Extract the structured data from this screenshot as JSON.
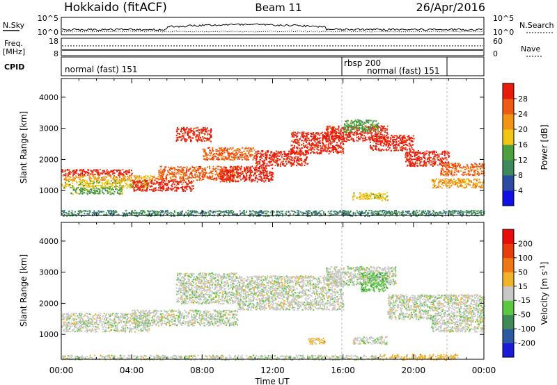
{
  "header": {
    "station": "Hokkaido (fitACF)",
    "beam": "Beam 11",
    "date": "26/Apr/2016"
  },
  "panels": {
    "nsky_label": "N.Sky",
    "nsearch_label": "N.Search",
    "nsky_ticks": [
      "10^5",
      "10^0"
    ],
    "nsearch_ticks": [
      "10^5",
      "10^0"
    ],
    "freq_label": "Freq.",
    "freq_unit": "[MHz]",
    "freq_ticks": [
      "18",
      "8"
    ],
    "nave_label": "Nave",
    "nave_ticks": [
      "60",
      "0"
    ],
    "cpid_label": "CPID",
    "cpid_modes": [
      {
        "label": "normal (fast) 151"
      },
      {
        "label": "rbsp 200"
      },
      {
        "label": "normal (fast) 151"
      }
    ]
  },
  "chart_data": [
    {
      "type": "heatmap",
      "name": "power",
      "ylabel": "Slant Range [km]",
      "ylim": [
        200,
        4600
      ],
      "yticks": [
        "1000",
        "2000",
        "3000",
        "4000"
      ],
      "xlim_hours": [
        0,
        24
      ],
      "colorbar_label": "Power [dB]",
      "colorbar_ticks": [
        "4",
        "8",
        "12",
        "16",
        "20",
        "24",
        "28"
      ],
      "colors": [
        "#1010e6",
        "#2c4ca0",
        "#3e8a5c",
        "#4ca040",
        "#f0c814",
        "#f09614",
        "#f05a14",
        "#e81c0c"
      ],
      "bands": [
        {
          "t0": 0.0,
          "t1": 4.0,
          "r0": 1500,
          "r1": 1700,
          "c": 7
        },
        {
          "t0": 0.0,
          "t1": 5.5,
          "r0": 1350,
          "r1": 1500,
          "c": 5
        },
        {
          "t0": 0.0,
          "t1": 5.0,
          "r0": 1100,
          "r1": 1350,
          "c": 4
        },
        {
          "t0": 0.5,
          "t1": 3.5,
          "r0": 900,
          "r1": 1100,
          "c": 3
        },
        {
          "t0": 4.0,
          "t1": 7.5,
          "r0": 1000,
          "r1": 1350,
          "c": 7
        },
        {
          "t0": 5.5,
          "t1": 10.0,
          "r0": 1350,
          "r1": 1800,
          "c": 6
        },
        {
          "t0": 6.5,
          "t1": 8.5,
          "r0": 2600,
          "r1": 3050,
          "c": 7
        },
        {
          "t0": 8.0,
          "t1": 11.0,
          "r0": 2000,
          "r1": 2400,
          "c": 6
        },
        {
          "t0": 9.0,
          "t1": 12.0,
          "r0": 1300,
          "r1": 1800,
          "c": 7
        },
        {
          "t0": 11.0,
          "t1": 14.0,
          "r0": 1800,
          "r1": 2300,
          "c": 7
        },
        {
          "t0": 13.0,
          "t1": 16.0,
          "r0": 2200,
          "r1": 2900,
          "c": 7
        },
        {
          "t0": 15.0,
          "t1": 18.5,
          "r0": 2600,
          "r1": 3100,
          "c": 7
        },
        {
          "t0": 16.0,
          "t1": 18.0,
          "r0": 2900,
          "r1": 3300,
          "c": 3
        },
        {
          "t0": 17.5,
          "t1": 20.0,
          "r0": 2300,
          "r1": 2800,
          "c": 7
        },
        {
          "t0": 19.5,
          "t1": 22.0,
          "r0": 1800,
          "r1": 2300,
          "c": 7
        },
        {
          "t0": 21.5,
          "t1": 24.0,
          "r0": 1500,
          "r1": 1900,
          "c": 6
        },
        {
          "t0": 21.0,
          "t1": 24.0,
          "r0": 1100,
          "r1": 1400,
          "c": 5
        },
        {
          "t0": 16.5,
          "t1": 18.5,
          "r0": 700,
          "r1": 950,
          "c": 4
        },
        {
          "t0": 0.0,
          "t1": 24.0,
          "r0": 200,
          "r1": 380,
          "c": 2
        }
      ]
    },
    {
      "type": "heatmap",
      "name": "velocity",
      "ylabel": "Slant Range [km]",
      "ylim": [
        200,
        4600
      ],
      "yticks": [
        "1000",
        "2000",
        "3000",
        "4000"
      ],
      "xlim_hours": [
        0,
        24
      ],
      "xticks": [
        "00:00",
        "04:00",
        "08:00",
        "12:00",
        "16:00",
        "20:00",
        "00:00"
      ],
      "xlabel": "Time UT",
      "colorbar_label": "Velocity [m s",
      "colorbar_label_sup": "-1",
      "colorbar_label_end": "]",
      "colorbar_ticks": [
        "200",
        "100",
        "50",
        "15",
        "-15",
        "-50",
        "-100",
        "-200"
      ],
      "colors": [
        "#1a1ad8",
        "#2c5aa0",
        "#3f8a58",
        "#5ac840",
        "#c8c8c8",
        "#f0b428",
        "#f07814",
        "#e83c0c",
        "#e80c0c"
      ],
      "bands": [
        {
          "t0": 0.0,
          "t1": 5.0,
          "r0": 1100,
          "r1": 1700,
          "c": 4
        },
        {
          "t0": 4.0,
          "t1": 10.0,
          "r0": 1300,
          "r1": 1800,
          "c": 4
        },
        {
          "t0": 6.5,
          "t1": 10.0,
          "r0": 2000,
          "r1": 3000,
          "c": 4
        },
        {
          "t0": 10.0,
          "t1": 16.0,
          "r0": 1800,
          "r1": 2900,
          "c": 4
        },
        {
          "t0": 15.0,
          "t1": 19.0,
          "r0": 2600,
          "r1": 3200,
          "c": 4
        },
        {
          "t0": 17.0,
          "t1": 18.5,
          "r0": 2400,
          "r1": 3000,
          "c": 3
        },
        {
          "t0": 18.5,
          "t1": 24.0,
          "r0": 1500,
          "r1": 2300,
          "c": 4
        },
        {
          "t0": 21.0,
          "t1": 24.0,
          "r0": 1100,
          "r1": 1500,
          "c": 4
        },
        {
          "t0": 14.0,
          "t1": 15.0,
          "r0": 700,
          "r1": 900,
          "c": 5
        },
        {
          "t0": 16.5,
          "t1": 18.5,
          "r0": 700,
          "r1": 950,
          "c": 4
        },
        {
          "t0": 18.0,
          "t1": 22.5,
          "r0": 200,
          "r1": 380,
          "c": 5
        },
        {
          "t0": 0.0,
          "t1": 18.0,
          "r0": 200,
          "r1": 350,
          "c": 4
        }
      ]
    }
  ]
}
